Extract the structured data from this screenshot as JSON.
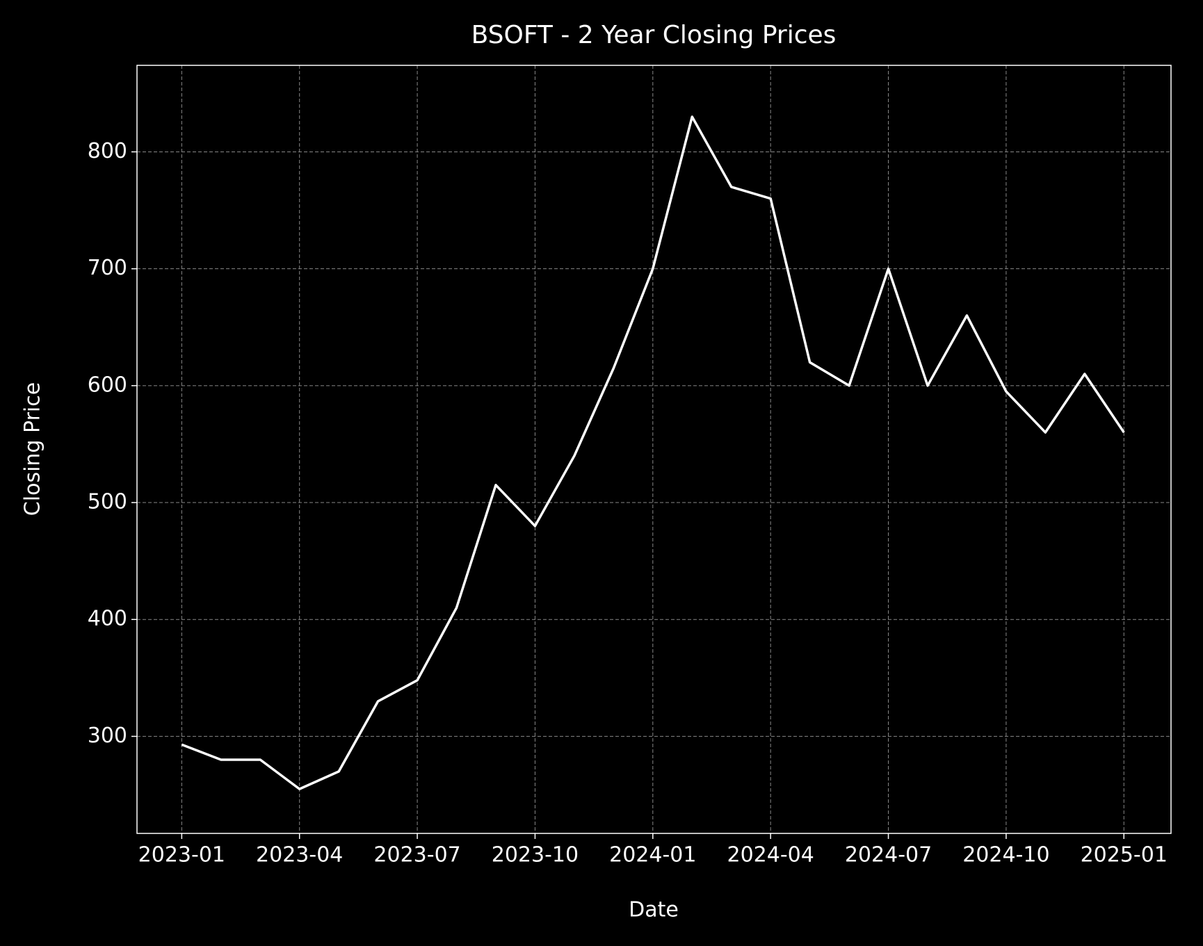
{
  "chart_data": {
    "type": "line",
    "title": "BSOFT - 2 Year Closing Prices",
    "x_label": "Date",
    "y_label": "Closing Price",
    "x": [
      "2023-01",
      "2023-02",
      "2023-03",
      "2023-04",
      "2023-05",
      "2023-06",
      "2023-07",
      "2023-08",
      "2023-09",
      "2023-10",
      "2023-11",
      "2023-12",
      "2024-01",
      "2024-02",
      "2024-03",
      "2024-04",
      "2024-05",
      "2024-06",
      "2024-07",
      "2024-08",
      "2024-09",
      "2024-10",
      "2024-11",
      "2024-12",
      "2025-01"
    ],
    "series": [
      {
        "name": "Closing Price",
        "color": "#ffffff",
        "values": [
          293,
          280,
          280,
          255,
          270,
          330,
          348,
          410,
          515,
          480,
          540,
          615,
          700,
          830,
          770,
          760,
          620,
          600,
          700,
          600,
          660,
          595,
          560,
          610,
          560
        ]
      }
    ],
    "xticks": [
      "2023-01",
      "2023-04",
      "2023-07",
      "2023-10",
      "2024-01",
      "2024-04",
      "2024-07",
      "2024-10",
      "2025-01"
    ],
    "ylim": [
      217,
      874
    ],
    "yticks": [
      300,
      400,
      500,
      600,
      700,
      800
    ],
    "grid": true
  }
}
